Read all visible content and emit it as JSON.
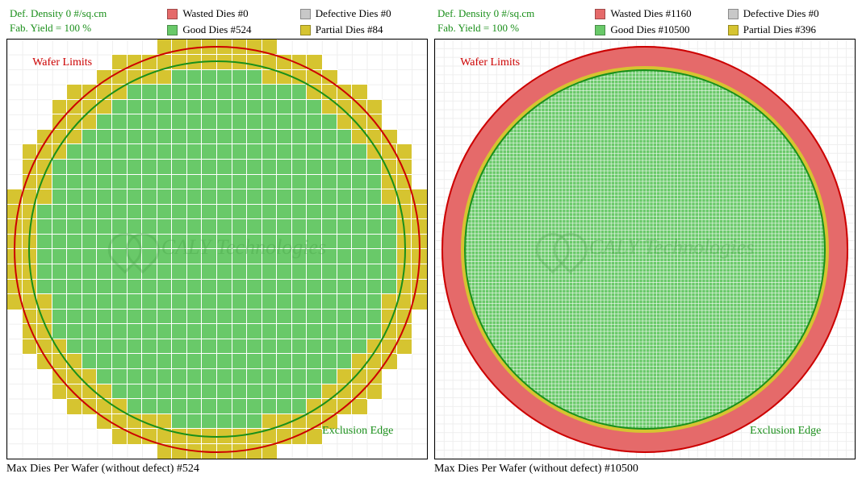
{
  "colors": {
    "wasted": "#e56a6a",
    "good": "#69c969",
    "defective": "#c8c8c8",
    "partial": "#d6c430",
    "wafer_outline": "#cc0000",
    "exclusion_outline": "#1a8f1a",
    "grid_minor": "#f0f0f0",
    "grid_major": "#dddddd",
    "frame": "#000000",
    "header_green": "#1a8f1a",
    "watermark": "rgba(70,160,70,0.35)"
  },
  "watermark_text": "CALY Technologies",
  "panels": [
    {
      "id": "left",
      "def_density_label": "Def. Density 0 #/sq.cm",
      "fab_yield_label": "Fab. Yield = 100 %",
      "legend": {
        "wasted": "Wasted Dies  #0",
        "good": "Good Dies #524",
        "defective": "Defective Dies  #0",
        "partial": "Partial Dies #84"
      },
      "plot": {
        "wafer_limits_label": "Wafer Limits",
        "exclusion_label": "Exclusion Edge",
        "outer_radius_pct": 48.5,
        "inner_radius_pct": 45.0,
        "grid_n": 28,
        "partial_ring_color": "partial",
        "outer_ring_color": null
      },
      "caption": "Max Dies Per Wafer (without defect) #524"
    },
    {
      "id": "right",
      "def_density_label": "Def. Density 0 #/sq.cm",
      "fab_yield_label": "Fab. Yield = 100 %",
      "legend": {
        "wasted": "Wasted Dies  #1160",
        "good": "Good Dies #10500",
        "defective": "Defective Dies  #0",
        "partial": "Partial Dies #396"
      },
      "plot": {
        "wafer_limits_label": "Wafer Limits",
        "exclusion_label": "Exclusion Edge",
        "outer_radius_pct": 48.5,
        "inner_radius_pct": 43.0,
        "grid_n": 120,
        "partial_ring_color": "partial",
        "outer_ring_color": "wasted"
      },
      "caption": "Max Dies Per Wafer (without defect) #10500"
    }
  ]
}
